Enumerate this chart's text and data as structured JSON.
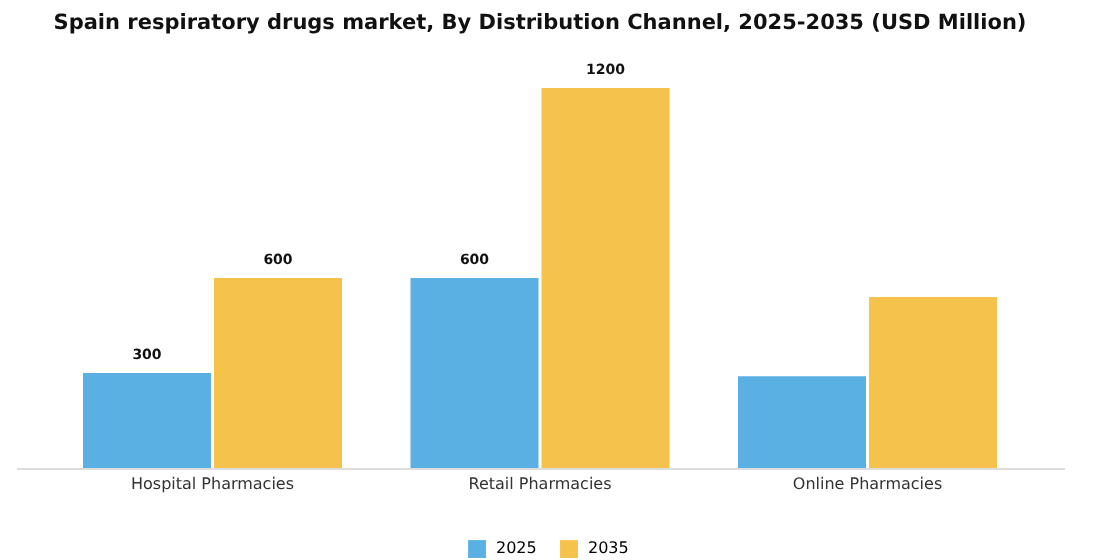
{
  "chart_data": {
    "type": "bar",
    "title": "Spain respiratory drugs market, By Distribution Channel, 2025-2035 (USD Million)",
    "categories": [
      "Hospital Pharmacies",
      "Retail Pharmacies",
      "Online Pharmacies"
    ],
    "series": [
      {
        "name": "2025",
        "color": "#5bb0e3",
        "values": [
          300,
          600,
          290
        ],
        "value_labels": [
          "300",
          "600",
          null
        ]
      },
      {
        "name": "2035",
        "color": "#f5c24c",
        "values": [
          600,
          1200,
          540
        ],
        "value_labels": [
          "600",
          "1200",
          null
        ]
      }
    ],
    "legend": "bottom",
    "tick_labels": "x"
  }
}
